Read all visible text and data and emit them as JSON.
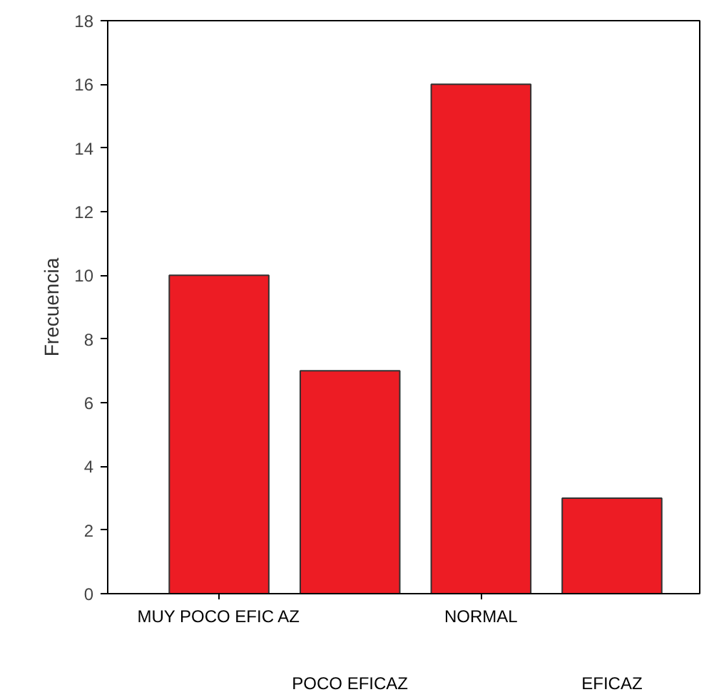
{
  "chart_data": {
    "type": "bar",
    "ylabel": "Frecuencia",
    "categories": [
      "MUY POCO EFIC AZ",
      "POCO EFICAZ",
      "NORMAL",
      "EFICAZ"
    ],
    "values": [
      10,
      7,
      16,
      3
    ],
    "color": "#ed1c24",
    "ylim": [
      0,
      18
    ],
    "yticks": [
      0,
      2,
      4,
      6,
      8,
      10,
      12,
      14,
      16,
      18
    ],
    "grid": false,
    "legend": false
  }
}
